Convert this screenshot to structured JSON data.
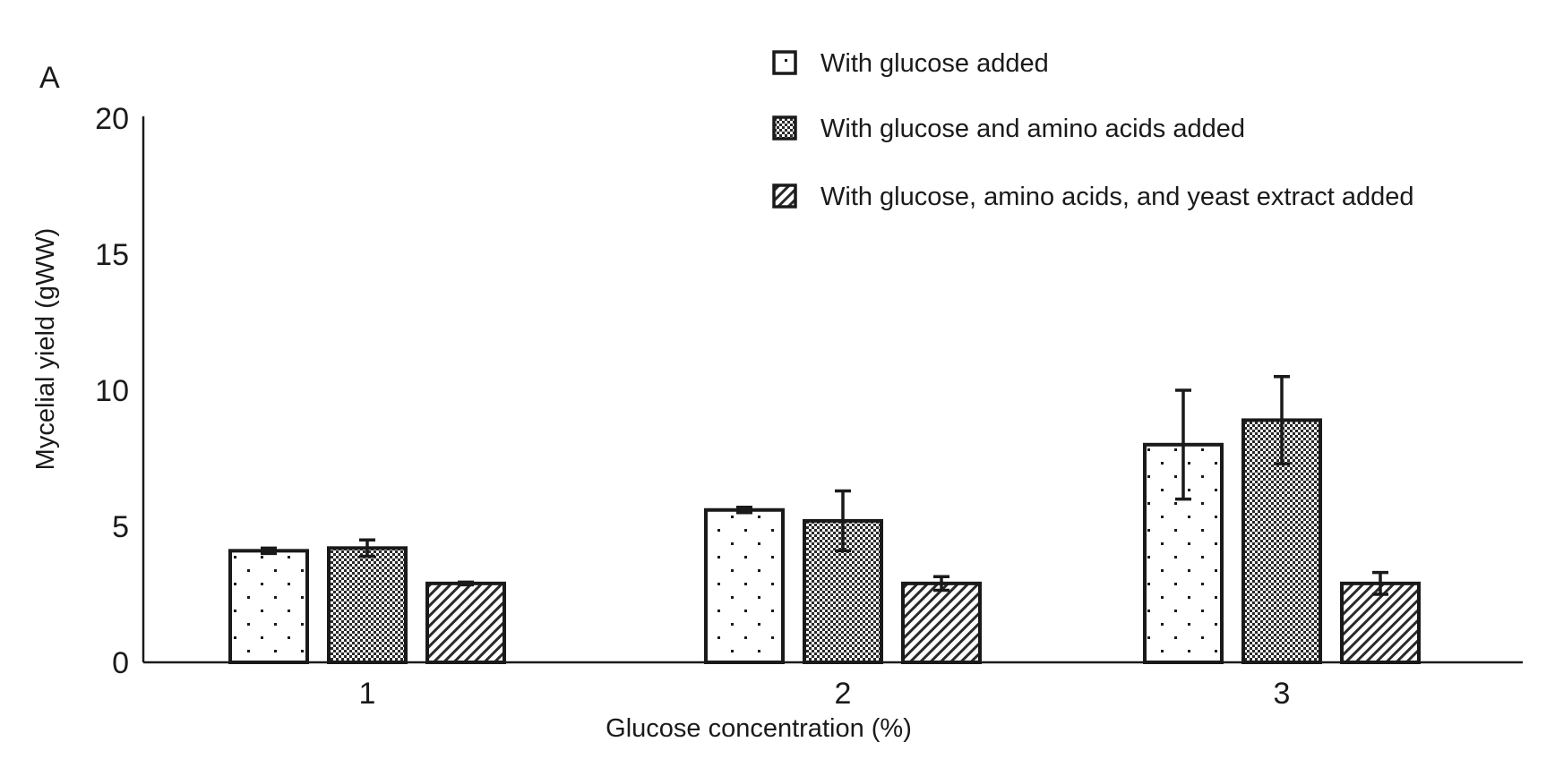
{
  "chart_data": {
    "type": "bar",
    "panel_label": "A",
    "title": "",
    "xlabel": "Glucose concentration (%)",
    "ylabel": "Mycelial yield (gWW)",
    "ylim": [
      0,
      20
    ],
    "yticks": [
      "0",
      "5",
      "10",
      "15",
      "20"
    ],
    "categories": [
      "1",
      "2",
      "3"
    ],
    "grid": false,
    "legend_position": "top-right",
    "series": [
      {
        "name": "With glucose added",
        "pattern": "dots",
        "values": [
          4.1,
          5.6,
          8.0
        ],
        "errors": [
          0.1,
          0.1,
          2.0
        ]
      },
      {
        "name": "With glucose and amino acids added",
        "pattern": "checker",
        "values": [
          4.2,
          5.2,
          8.9
        ],
        "errors": [
          0.3,
          1.1,
          1.6
        ]
      },
      {
        "name": "With glucose, amino acids, and yeast extract added",
        "pattern": "hatch",
        "values": [
          2.9,
          2.9,
          2.9
        ],
        "errors": [
          0.05,
          0.25,
          0.4
        ]
      }
    ],
    "colors": {
      "ink": "#1a1a1a",
      "fill": "#ffffff"
    }
  }
}
